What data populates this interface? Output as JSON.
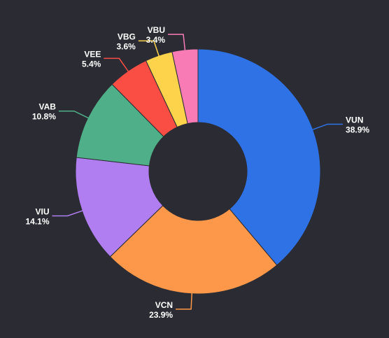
{
  "chart_data": {
    "type": "pie",
    "donut": true,
    "slices": [
      {
        "label": "VUN",
        "value": 38.9,
        "value_label": "38.9%",
        "color": "#2f72e6"
      },
      {
        "label": "VCN",
        "value": 23.9,
        "value_label": "23.9%",
        "color": "#fd974a"
      },
      {
        "label": "VIU",
        "value": 14.1,
        "value_label": "14.1%",
        "color": "#b07ef0"
      },
      {
        "label": "VAB",
        "value": 10.8,
        "value_label": "10.8%",
        "color": "#4faf88"
      },
      {
        "label": "VEE",
        "value": 5.4,
        "value_label": "5.4%",
        "color": "#fa4e44"
      },
      {
        "label": "VBG",
        "value": 3.6,
        "value_label": "3.6%",
        "color": "#fdd34c"
      },
      {
        "label": "VBU",
        "value": 3.4,
        "value_label": "3.4%",
        "color": "#f97bb5"
      }
    ],
    "legend": "none"
  }
}
